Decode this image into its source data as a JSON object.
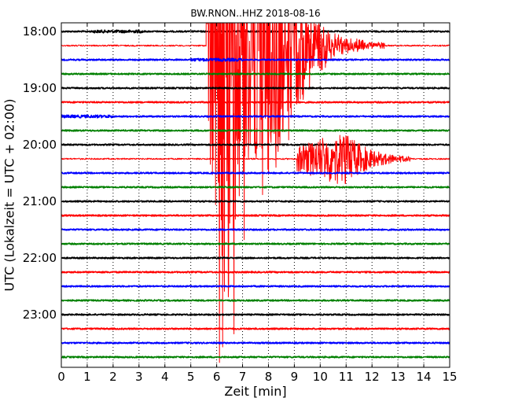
{
  "chart_data": {
    "type": "line",
    "title": "BW.RNON..HHZ 2018-08-16",
    "xlabel": "Zeit  [min]",
    "ylabel": "UTC (Lokalzeit = UTC + 02:00)",
    "xlim": [
      0,
      15
    ],
    "x_ticks": [
      "0",
      "1",
      "2",
      "3",
      "4",
      "5",
      "6",
      "7",
      "8",
      "9",
      "10",
      "11",
      "12",
      "13",
      "14",
      "15"
    ],
    "y_ticks": [
      "18:00",
      "19:00",
      "20:00",
      "21:00",
      "22:00",
      "23:00"
    ],
    "line_interval_minutes": 15,
    "line_colors": [
      "#000000",
      "#ff0000",
      "#0000ff",
      "#008000"
    ],
    "grid": "vertical dotted",
    "traces": [
      {
        "start": "18:00",
        "color": "#000000"
      },
      {
        "start": "18:15",
        "color": "#ff0000"
      },
      {
        "start": "18:30",
        "color": "#0000ff"
      },
      {
        "start": "18:45",
        "color": "#008000"
      },
      {
        "start": "19:00",
        "color": "#000000"
      },
      {
        "start": "19:15",
        "color": "#ff0000"
      },
      {
        "start": "19:30",
        "color": "#0000ff"
      },
      {
        "start": "19:45",
        "color": "#008000"
      },
      {
        "start": "20:00",
        "color": "#000000"
      },
      {
        "start": "20:15",
        "color": "#ff0000"
      },
      {
        "start": "20:30",
        "color": "#0000ff"
      },
      {
        "start": "20:45",
        "color": "#008000"
      },
      {
        "start": "21:00",
        "color": "#000000"
      },
      {
        "start": "21:15",
        "color": "#ff0000"
      },
      {
        "start": "21:30",
        "color": "#0000ff"
      },
      {
        "start": "21:45",
        "color": "#008000"
      },
      {
        "start": "22:00",
        "color": "#000000"
      },
      {
        "start": "22:15",
        "color": "#ff0000"
      },
      {
        "start": "22:30",
        "color": "#0000ff"
      },
      {
        "start": "22:45",
        "color": "#008000"
      },
      {
        "start": "23:00",
        "color": "#000000"
      },
      {
        "start": "23:15",
        "color": "#ff0000"
      },
      {
        "start": "23:30",
        "color": "#0000ff"
      },
      {
        "start": "23:45",
        "color": "#008000"
      }
    ],
    "events": [
      {
        "trace_start": "18:15",
        "onset_min": 5.6,
        "peak_min": 6.0,
        "end_min": 12.5
      },
      {
        "trace_start": "20:15",
        "onset_min": 9.1,
        "peak_min": 10.6,
        "end_min": 13.5
      }
    ]
  }
}
